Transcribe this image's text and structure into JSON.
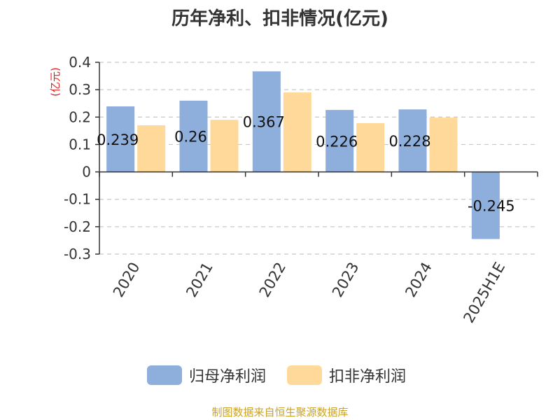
{
  "chart_data": {
    "type": "bar",
    "title": "历年净利、扣非情况(亿元)",
    "ylabel": "(亿元)",
    "categories": [
      "2020",
      "2021",
      "2022",
      "2023",
      "2024",
      "2025H1E"
    ],
    "series": [
      {
        "name": "归母净利润",
        "color": "#8eaedc",
        "values": [
          0.239,
          0.26,
          0.367,
          0.226,
          0.228,
          -0.245
        ],
        "labels": [
          "0.239",
          "0.26",
          "0.367",
          "0.226",
          "0.228",
          "-0.245"
        ]
      },
      {
        "name": "扣非净利润",
        "color": "#ffd999",
        "values": [
          0.17,
          0.19,
          0.29,
          0.178,
          0.198,
          null
        ]
      }
    ],
    "ylim": [
      -0.3,
      0.4
    ],
    "yticks": [
      0.4,
      0.3,
      0.2,
      0.1,
      0,
      -0.1,
      -0.2,
      -0.3
    ],
    "ytick_labels": [
      "0.4",
      "0.3",
      "0.2",
      "0.1",
      "0",
      "-0.1",
      "-0.2",
      "-0.3"
    ],
    "grid": true,
    "legend_position": "bottom"
  },
  "source": "制图数据来自恒生聚源数据库"
}
